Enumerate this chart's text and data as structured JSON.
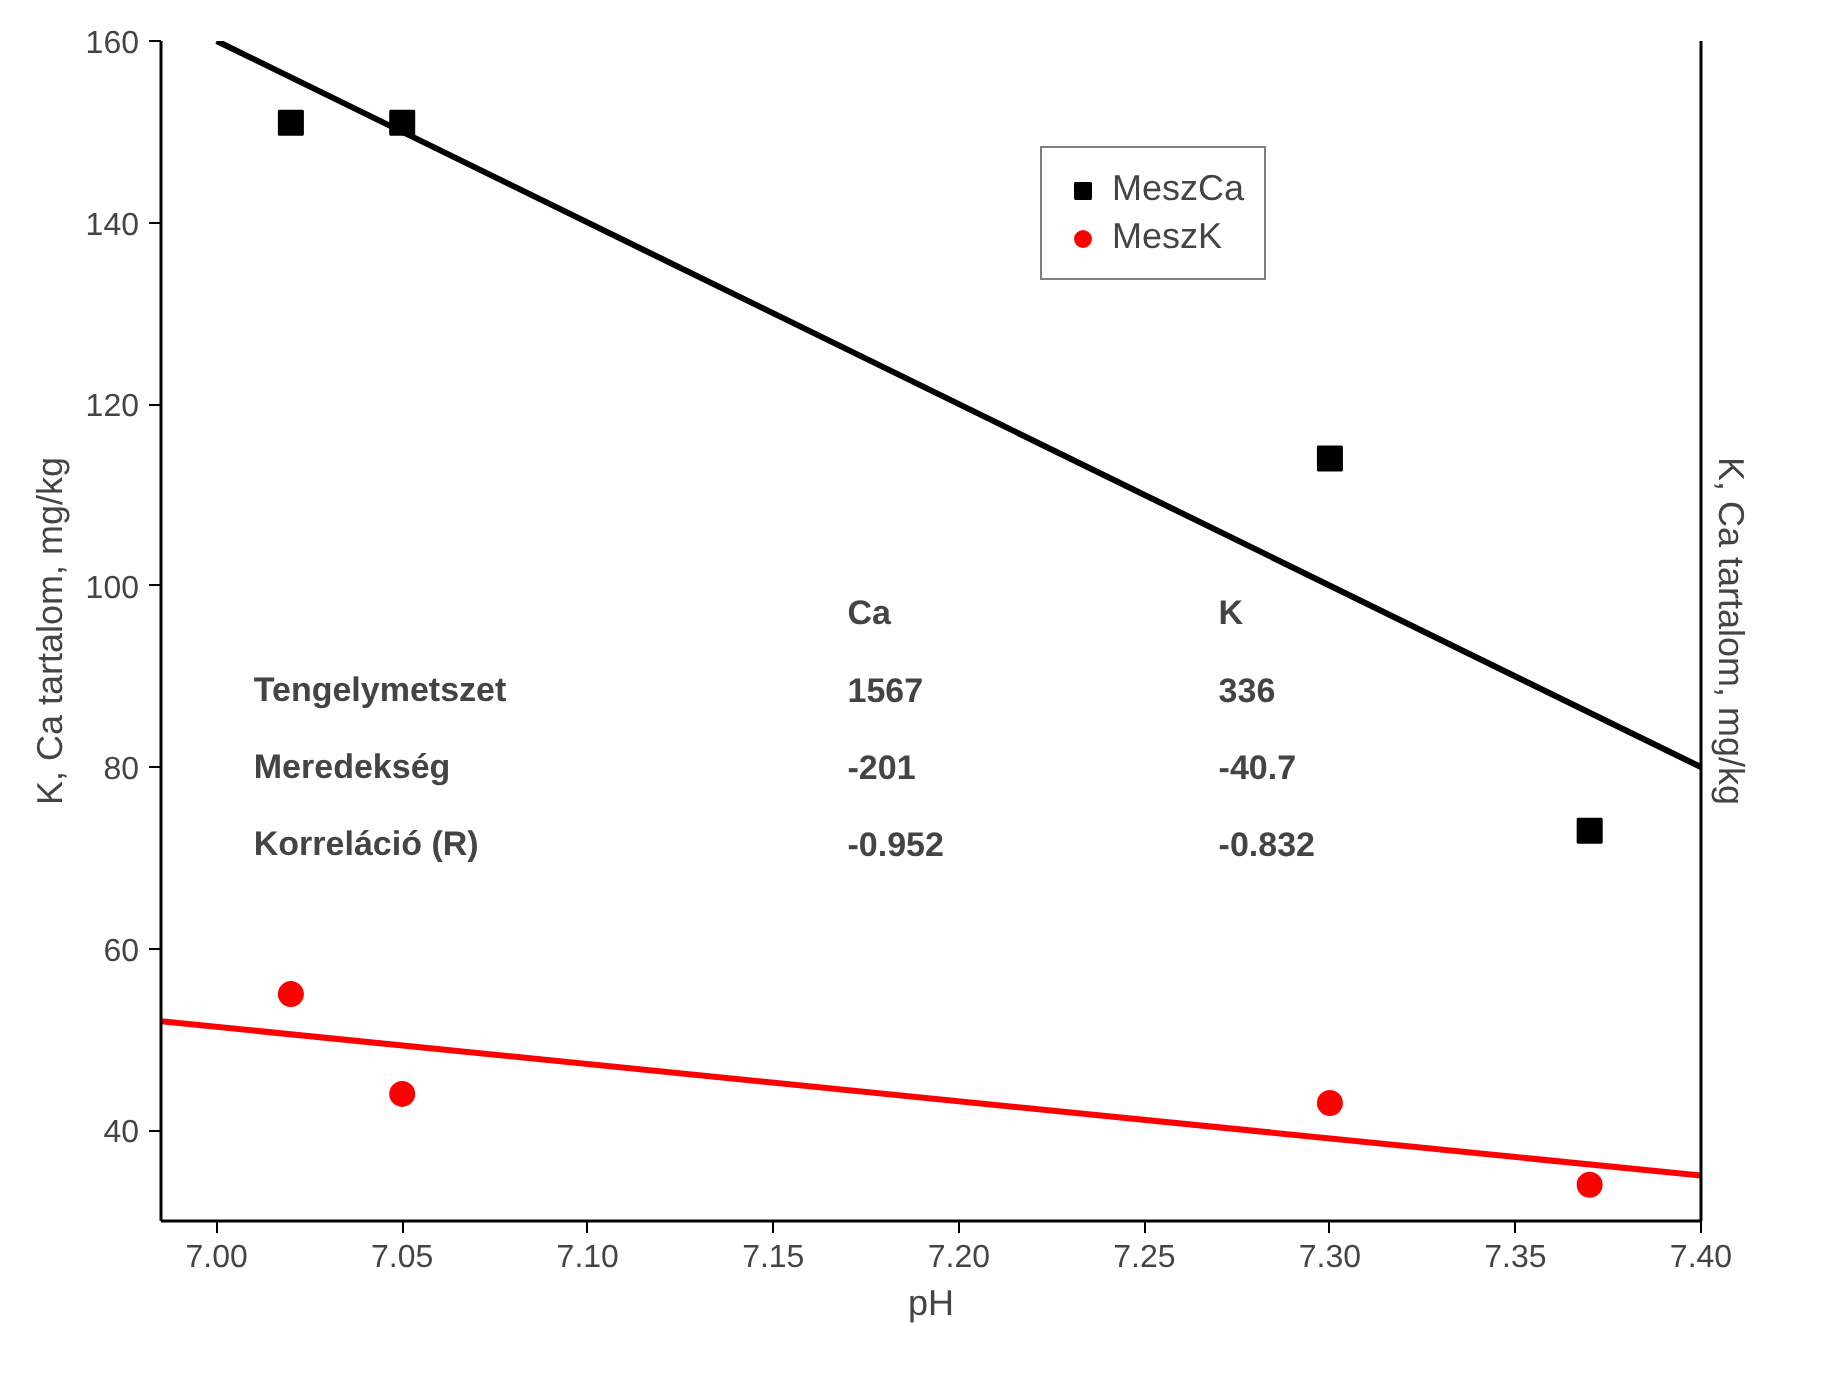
{
  "chart_data": {
    "type": "scatter",
    "xlabel": "pH",
    "ylabel": "K, Ca tartalom, mg/kg",
    "y2label": "K, Ca tartalom, mg/kg",
    "xlim": [
      6.985,
      7.4
    ],
    "ylim": [
      30,
      160
    ],
    "xticks": [
      {
        "value": 7.0,
        "label": "7.00"
      },
      {
        "value": 7.05,
        "label": "7.05"
      },
      {
        "value": 7.1,
        "label": "7.10"
      },
      {
        "value": 7.15,
        "label": "7.15"
      },
      {
        "value": 7.2,
        "label": "7.20"
      },
      {
        "value": 7.25,
        "label": "7.25"
      },
      {
        "value": 7.3,
        "label": "7.30"
      },
      {
        "value": 7.35,
        "label": "7.35"
      },
      {
        "value": 7.4,
        "label": "7.40"
      }
    ],
    "yticks": [
      40,
      60,
      80,
      100,
      120,
      140,
      160
    ],
    "grid": false,
    "legend": "top right",
    "series": [
      {
        "name": "MeszCa",
        "marker": "square",
        "color": "#000000",
        "x": [
          7.02,
          7.05,
          7.3,
          7.37
        ],
        "values": [
          151,
          151,
          114,
          73
        ]
      },
      {
        "name": "MeszK",
        "marker": "circle",
        "color": "#ff0000",
        "x": [
          7.02,
          7.05,
          7.3,
          7.37
        ],
        "values": [
          55,
          44,
          43,
          34
        ]
      },
      {
        "type": "line",
        "color": "#000000",
        "x": [
          7.0,
          7.4
        ],
        "values": [
          160,
          80
        ]
      },
      {
        "type": "line",
        "color": "#ff0000",
        "x": [
          6.985,
          7.4
        ],
        "values": [
          52,
          35
        ]
      }
    ],
    "annotations": [
      "Ca",
      "K",
      "Tengelymetszet",
      "1567",
      "336",
      "Meredekség",
      "-201",
      "-40.7",
      "Korreláció (R)",
      "-0.952",
      "-0.832"
    ]
  }
}
